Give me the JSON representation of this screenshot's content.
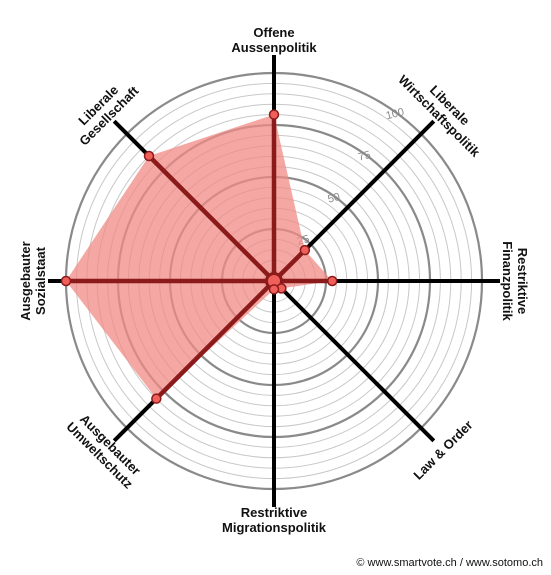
{
  "chart_data": {
    "type": "radar",
    "axes": [
      {
        "name": "Offene Aussenpolitik",
        "lines": [
          "Offene",
          "Aussenpolitik"
        ],
        "value": 80
      },
      {
        "name": "Liberale Wirtschaftspolitik",
        "lines": [
          "Liberale",
          "Wirtschaftspolitik"
        ],
        "value": 21
      },
      {
        "name": "Restriktive Finanzpolitik",
        "lines": [
          "Restriktive",
          "Finanzpolitik"
        ],
        "value": 28
      },
      {
        "name": "Law & Order",
        "lines": [
          "Law & Order"
        ],
        "value": 5
      },
      {
        "name": "Restriktive Migrationspolitik",
        "lines": [
          "Restriktive",
          "Migrationspolitik"
        ],
        "value": 4
      },
      {
        "name": "Ausgebauter Umweltschutz",
        "lines": [
          "Ausgebauter",
          "Umweltschutz"
        ],
        "value": 80
      },
      {
        "name": "Ausgebauter Sozialstaat",
        "lines": [
          "Ausgebauter",
          "Sozialstaat"
        ],
        "value": 100
      },
      {
        "name": "Liberale Gesellschaft",
        "lines": [
          "Liberale",
          "Gesellschaft"
        ],
        "value": 85
      }
    ],
    "range": [
      0,
      100
    ],
    "ticks": [
      25,
      50,
      75,
      100
    ],
    "grid_step": 5,
    "grid": true,
    "legend": "none",
    "fill_color": "#f08a84",
    "line_color": "#8b1a1a",
    "point_color": "#f0605a"
  },
  "credit": "© www.smartvote.ch / www.sotomo.ch"
}
